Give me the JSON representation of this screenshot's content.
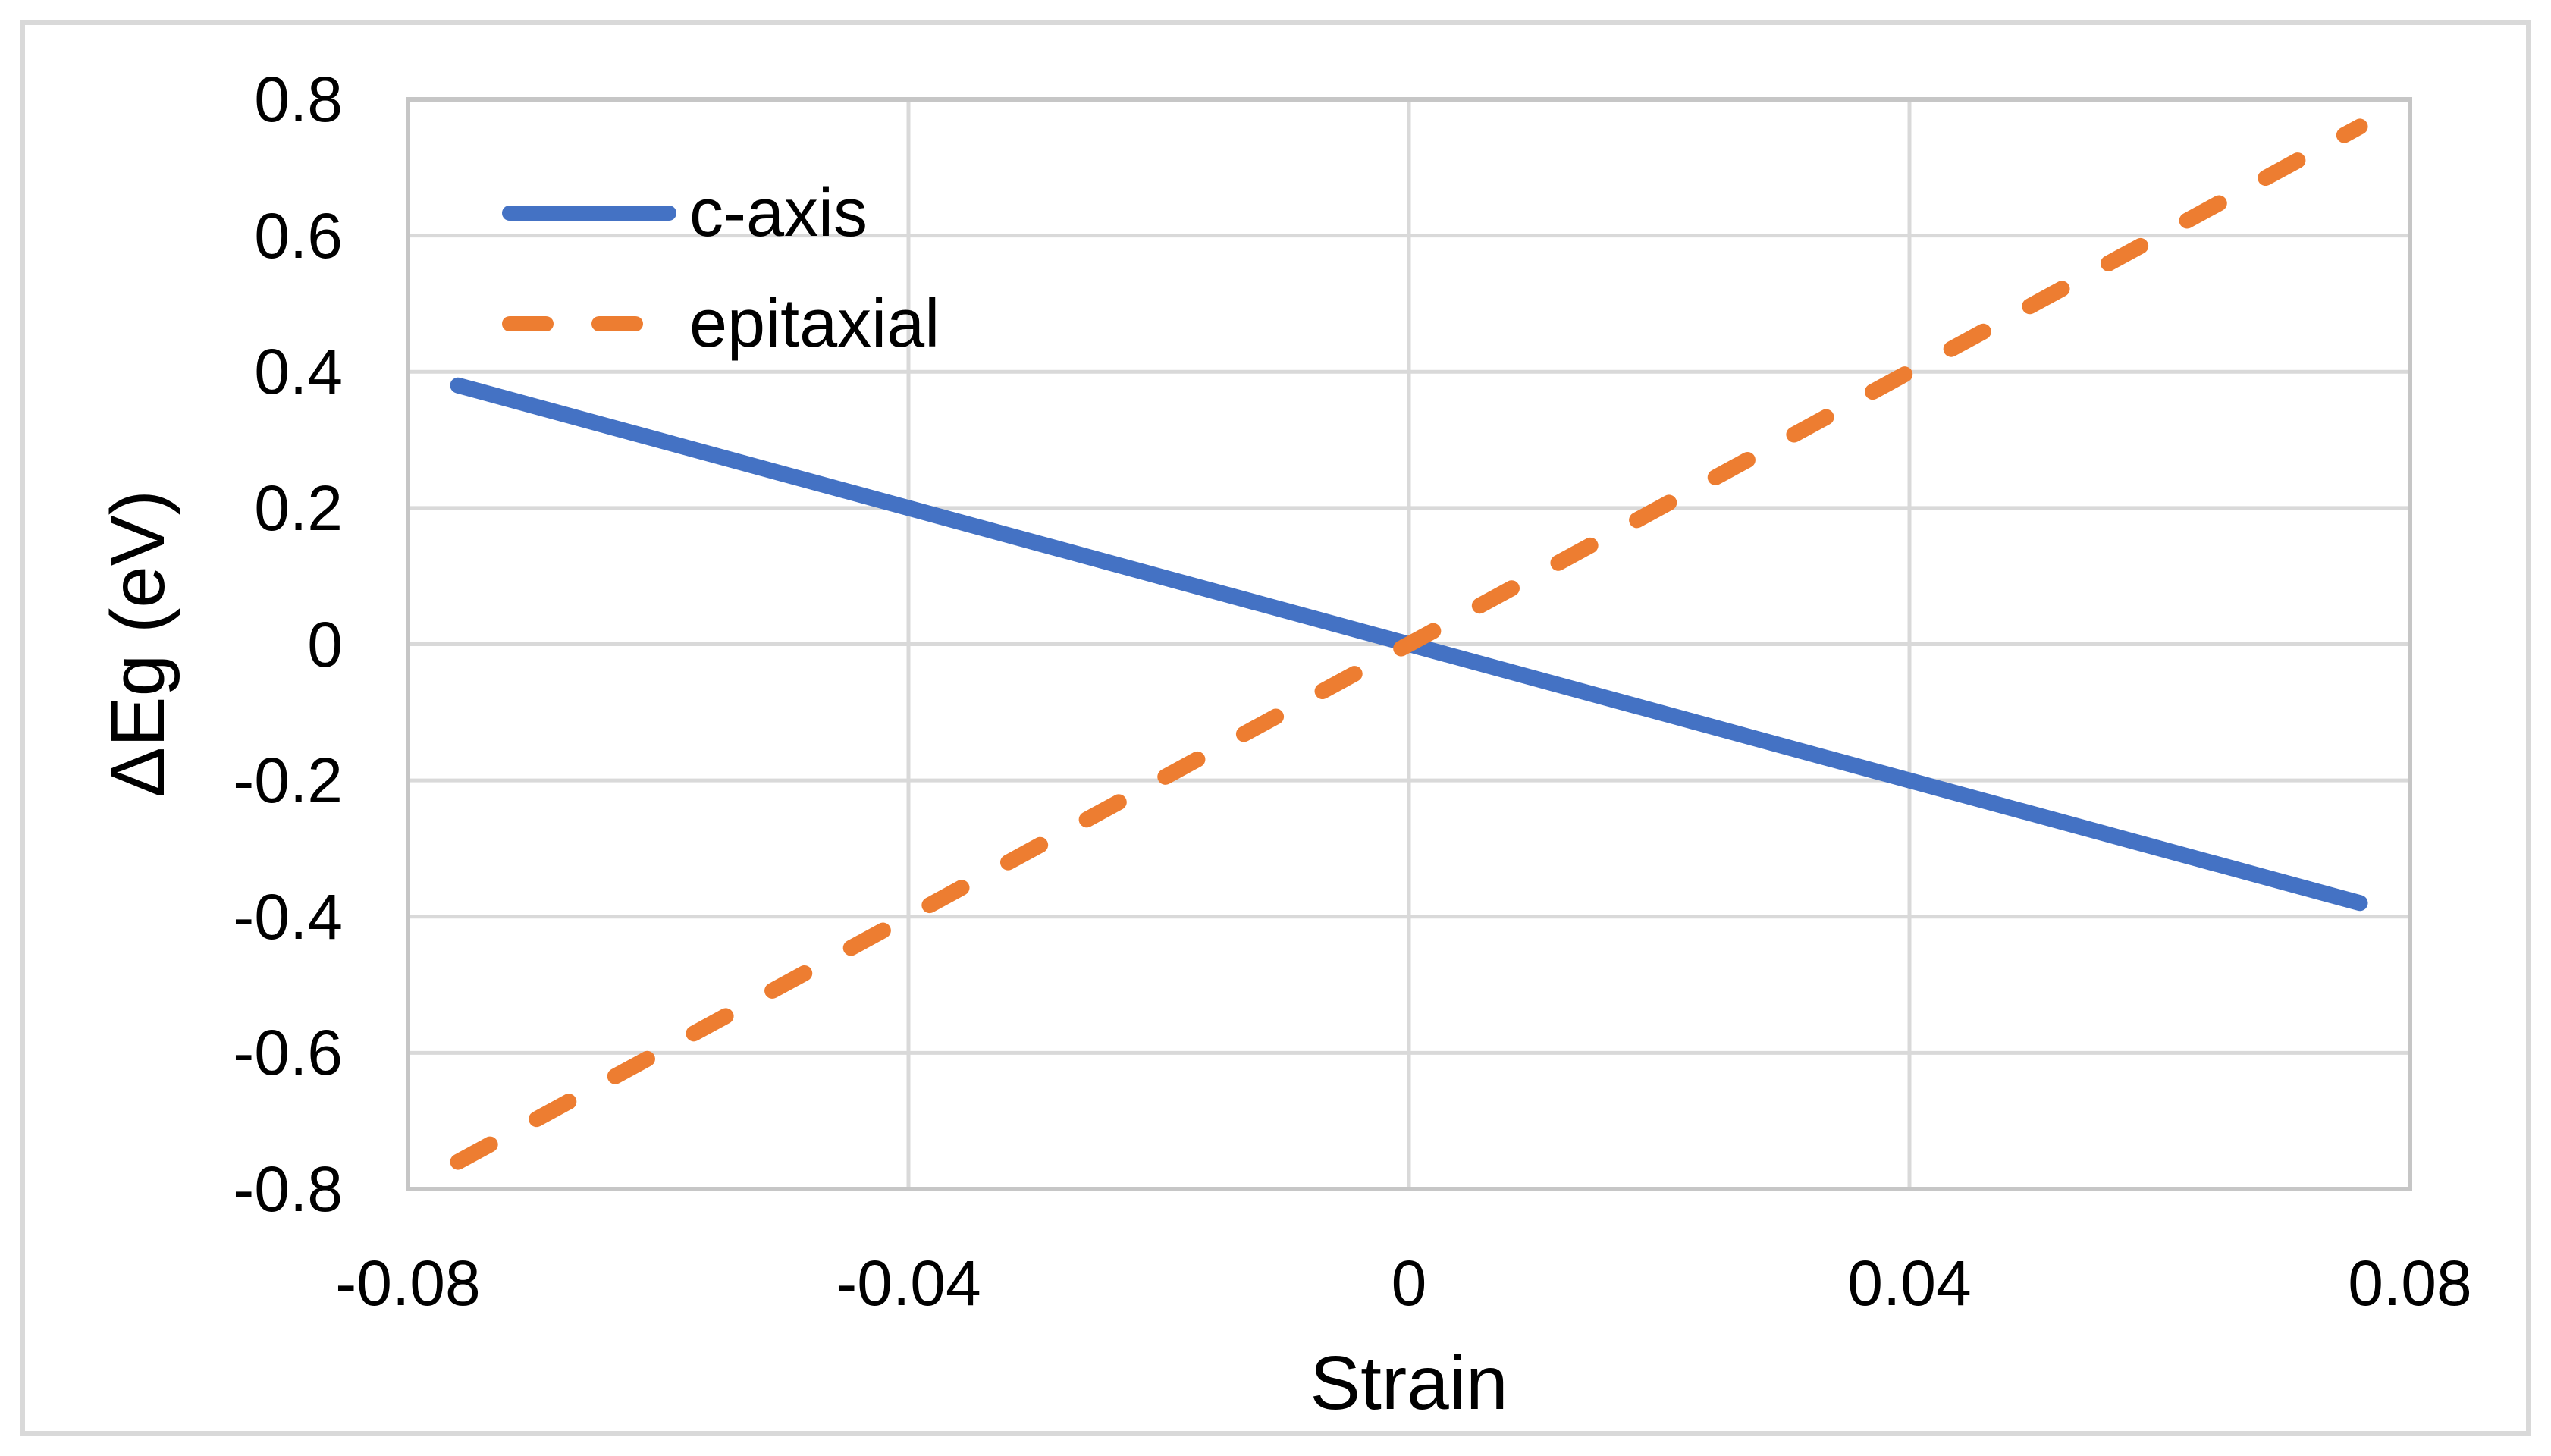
{
  "chart_data": {
    "type": "line",
    "xlabel": "Strain",
    "ylabel": "ΔEg (eV)",
    "xlim": [
      -0.08,
      0.08
    ],
    "ylim": [
      -0.8,
      0.8
    ],
    "grid": true,
    "legend_position": "top-left-inside",
    "x_ticks": [
      {
        "value": -0.08,
        "label": "-0.08"
      },
      {
        "value": -0.04,
        "label": "-0.04"
      },
      {
        "value": 0,
        "label": "0"
      },
      {
        "value": 0.04,
        "label": "0.04"
      },
      {
        "value": 0.08,
        "label": "0.08"
      }
    ],
    "y_ticks": [
      {
        "value": 0.8,
        "label": "0.8"
      },
      {
        "value": 0.6,
        "label": "0.6"
      },
      {
        "value": 0.4,
        "label": "0.4"
      },
      {
        "value": 0.2,
        "label": "0.2"
      },
      {
        "value": 0,
        "label": "0"
      },
      {
        "value": -0.2,
        "label": "-0.2"
      },
      {
        "value": -0.4,
        "label": "-0.4"
      },
      {
        "value": -0.6,
        "label": "-0.6"
      },
      {
        "value": -0.8,
        "label": "-0.8"
      }
    ],
    "series": [
      {
        "name": "c-axis",
        "color": "#4472C4",
        "line_style": "solid",
        "points": [
          {
            "x": -0.076,
            "y": 0.38
          },
          {
            "x": 0.076,
            "y": -0.38
          }
        ]
      },
      {
        "name": "epitaxial",
        "color": "#ED7D31",
        "line_style": "dashed",
        "points": [
          {
            "x": -0.076,
            "y": -0.76
          },
          {
            "x": 0.076,
            "y": 0.76
          }
        ]
      }
    ]
  },
  "styles": {
    "grid_color": "#D9D9D9",
    "plot_border_color": "#C6C6C6",
    "figure_border_color": "#D9D9D9",
    "text_color": "#000000"
  }
}
